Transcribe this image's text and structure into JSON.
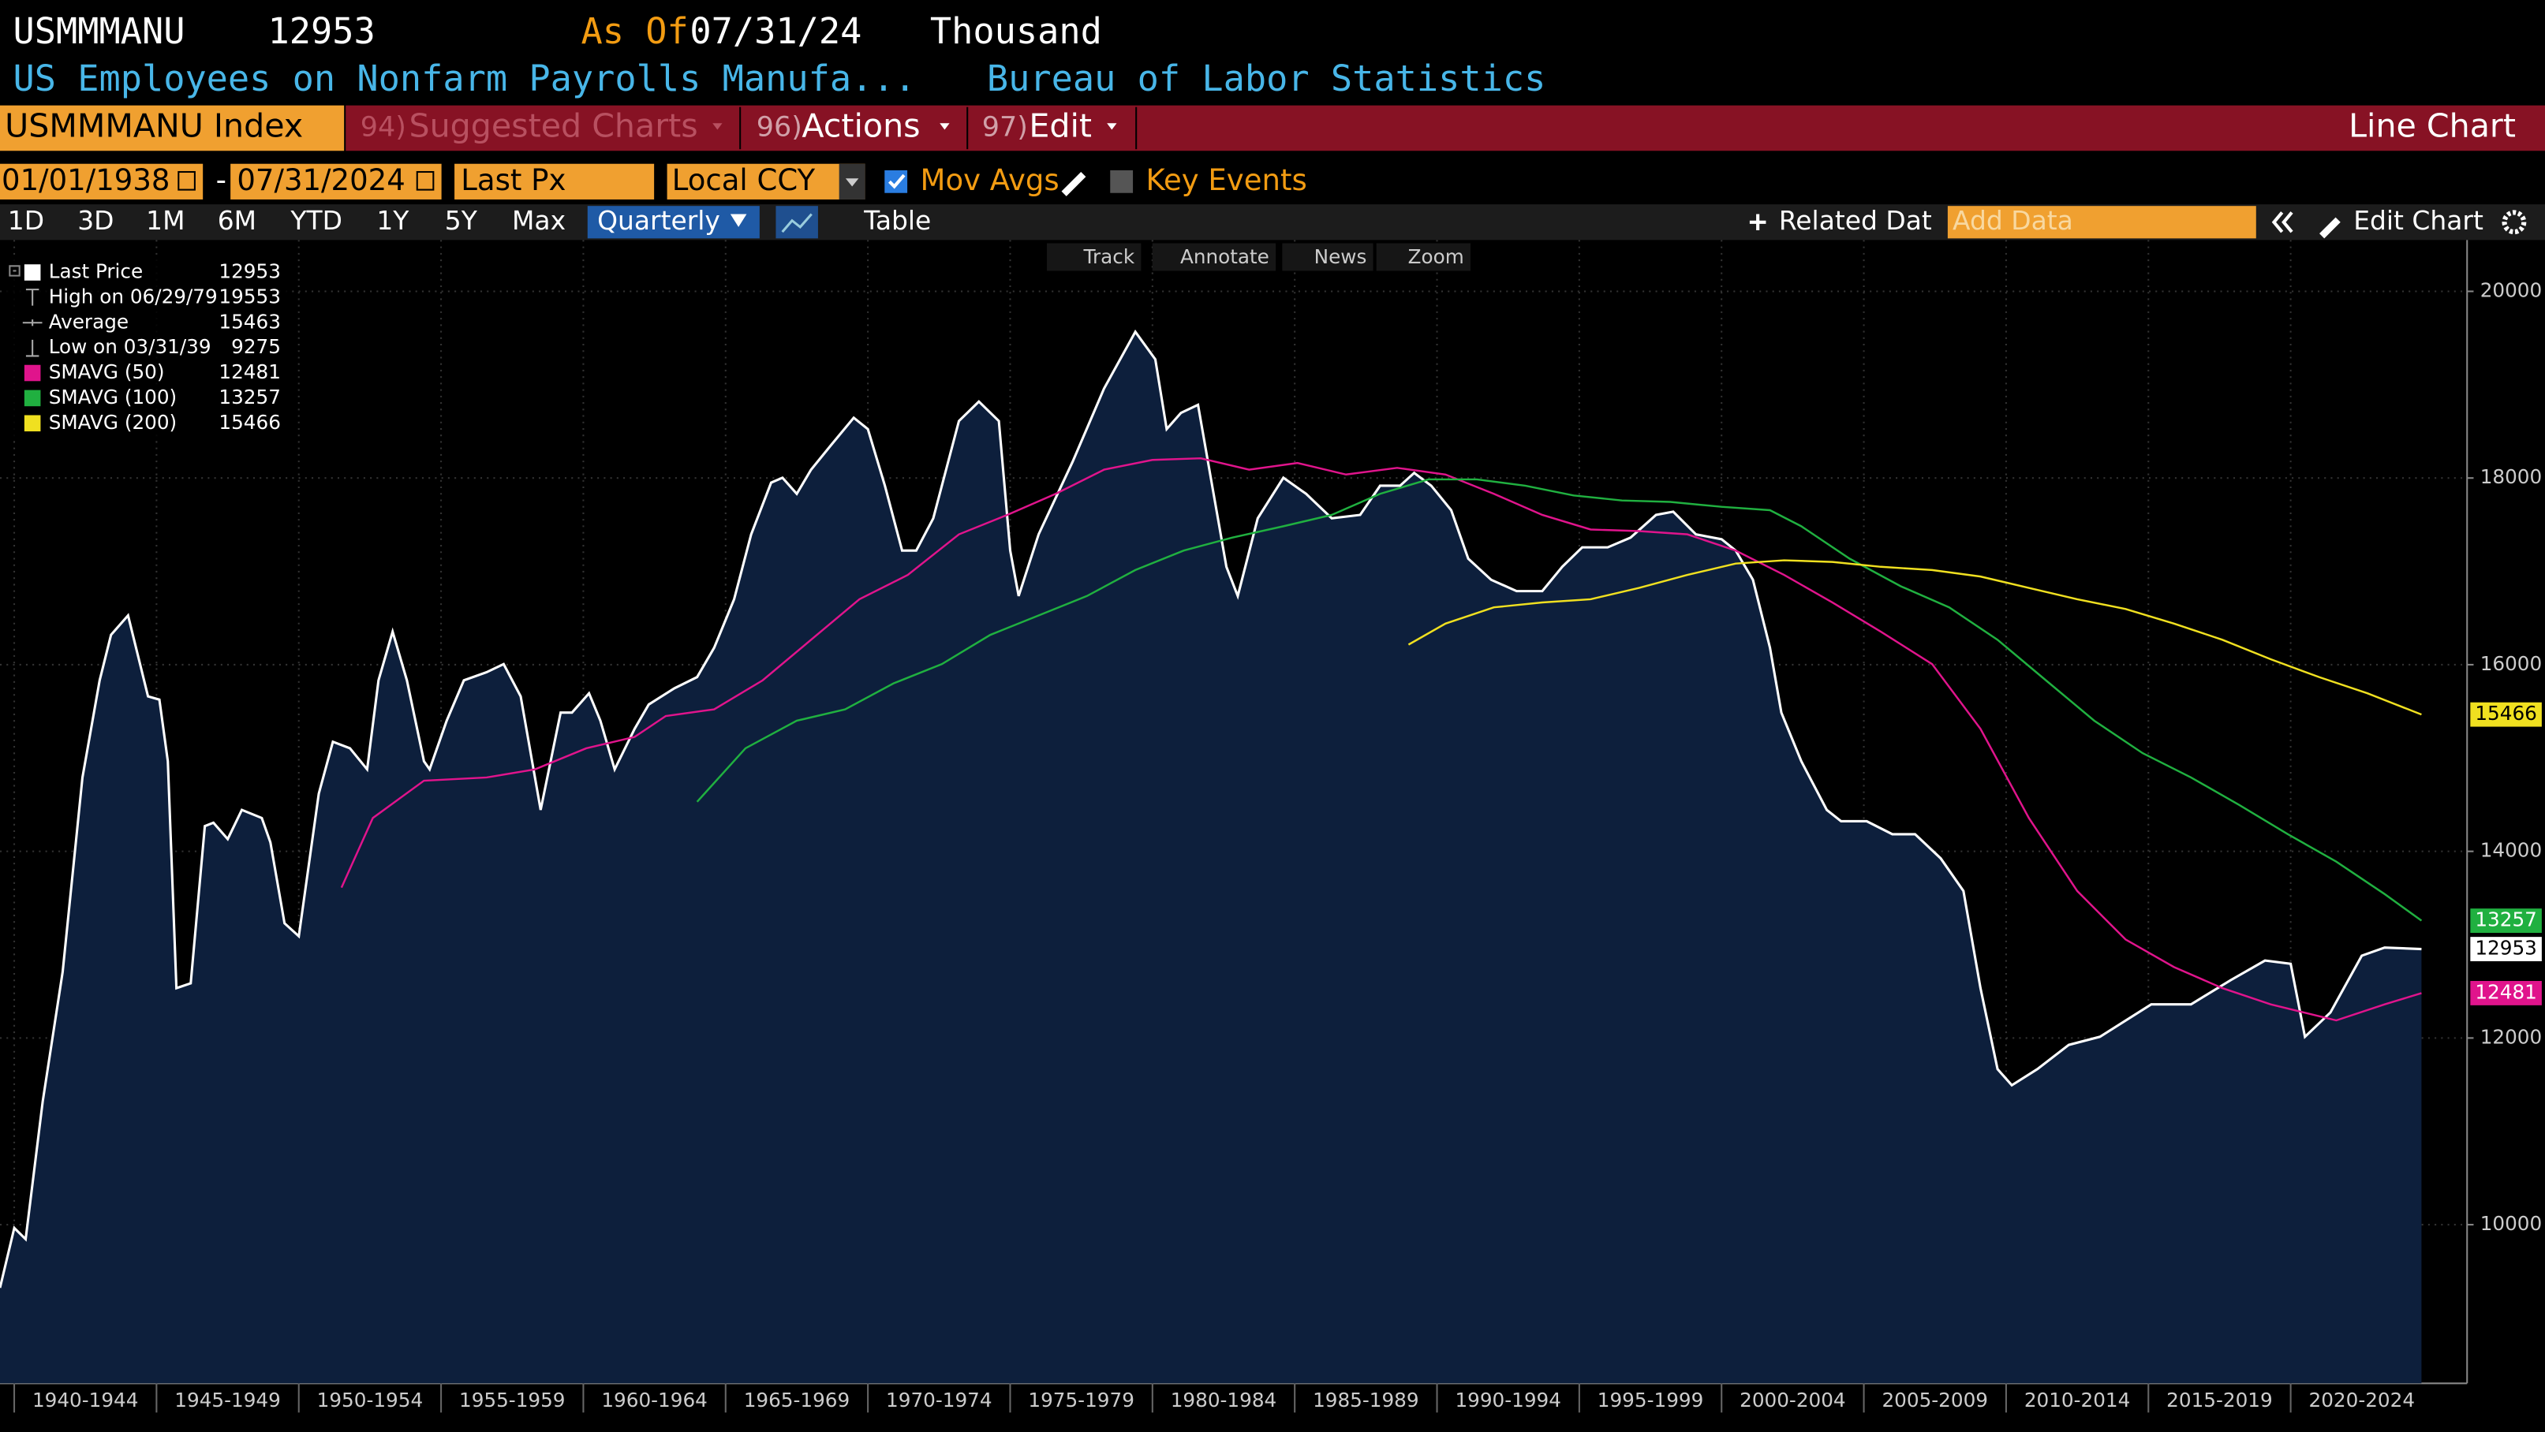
{
  "header": {
    "ticker": "USMMMANU",
    "as_of_label": "As Of",
    "as_of": "07/31/24",
    "units": "Thousand",
    "description": "US Employees on Nonfarm Payrolls Manufa...",
    "source": "Bureau of Labor Statistics"
  },
  "toolbar": {
    "security": "USMMMANU Index",
    "menus": [
      {
        "key": "94)",
        "label": "Suggested Charts"
      },
      {
        "key": "96)",
        "label": "Actions"
      },
      {
        "key": "97)",
        "label": "Edit"
      }
    ],
    "chart_kind": "Line Chart"
  },
  "controls": {
    "start": "01/01/1938",
    "separator": "-",
    "end": "07/31/2024",
    "field": "Last Px",
    "currency": "Local CCY",
    "mov_avgs": "Mov Avgs",
    "key_events": "Key Events"
  },
  "tabs": [
    "1D",
    "3D",
    "1M",
    "6M",
    "YTD",
    "1Y",
    "5Y",
    "Max",
    "Quarterly"
  ],
  "table_tab": "Table",
  "related": "Related Dat",
  "add_data": "Add Data",
  "edit_chart": "Edit Chart",
  "tools": [
    "Track",
    "Annotate",
    "News",
    "Zoom"
  ],
  "chart_data": {
    "type": "line",
    "xlim": [
      1939.5,
      2026.2
    ],
    "ylim": [
      8300,
      20550
    ],
    "xticks": [
      {
        "value": 1940,
        "label": "1940-1944"
      },
      {
        "value": 1945,
        "label": "1945-1949"
      },
      {
        "value": 1950,
        "label": "1950-1954"
      },
      {
        "value": 1955,
        "label": "1955-1959"
      },
      {
        "value": 1960,
        "label": "1960-1964"
      },
      {
        "value": 1965,
        "label": "1965-1969"
      },
      {
        "value": 1970,
        "label": "1970-1974"
      },
      {
        "value": 1975,
        "label": "1975-1979"
      },
      {
        "value": 1980,
        "label": "1980-1984"
      },
      {
        "value": 1985,
        "label": "1985-1989"
      },
      {
        "value": 1990,
        "label": "1990-1994"
      },
      {
        "value": 1995,
        "label": "1995-1999"
      },
      {
        "value": 2000,
        "label": "2000-2004"
      },
      {
        "value": 2005,
        "label": "2005-2009"
      },
      {
        "value": 2010,
        "label": "2010-2014"
      },
      {
        "value": 2015,
        "label": "2015-2019"
      },
      {
        "value": 2020,
        "label": "2020-2024"
      }
    ],
    "yticks": [
      10000,
      12000,
      14000,
      16000,
      18000,
      20000
    ],
    "grid": true,
    "legend_stats": [
      {
        "label": "High on 06/29/79",
        "value": 19553
      },
      {
        "label": "Average",
        "value": 15463
      },
      {
        "label": "Low on 03/31/39",
        "value": 9275
      }
    ],
    "series": [
      {
        "name": "Last Price",
        "color": "#ffffff",
        "fill": "#0d1f3c",
        "last": 12953,
        "x": [
          1939.5,
          1940,
          1940.4,
          1941,
          1941.7,
          1942.4,
          1943,
          1943.4,
          1944,
          1944.7,
          1945.1,
          1945.4,
          1945.7,
          1946.2,
          1946.7,
          1947,
          1947.5,
          1948,
          1948.7,
          1949,
          1949.5,
          1950,
          1950.7,
          1951.2,
          1951.8,
          1952.4,
          1952.8,
          1953.3,
          1953.8,
          1954.4,
          1954.6,
          1955.2,
          1955.8,
          1956.6,
          1957.2,
          1957.8,
          1958.5,
          1959.2,
          1959.6,
          1960.2,
          1960.6,
          1961.1,
          1961.8,
          1962.3,
          1963.2,
          1964,
          1964.6,
          1965.3,
          1965.9,
          1966.6,
          1967,
          1967.5,
          1968,
          1968.7,
          1969.5,
          1970,
          1970.6,
          1971.2,
          1971.7,
          1972.3,
          1973.2,
          1973.9,
          1974.6,
          1975,
          1975.3,
          1976,
          1977.2,
          1978.3,
          1979.4,
          1980.1,
          1980.5,
          1981,
          1981.6,
          1982,
          1982.6,
          1983,
          1983.7,
          1984.6,
          1985.4,
          1986.3,
          1987.3,
          1988,
          1988.7,
          1989.2,
          1989.8,
          1990.5,
          1991.1,
          1991.9,
          1992.8,
          1993.7,
          1994.4,
          1995.1,
          1996,
          1996.8,
          1997.7,
          1998.3,
          1999.1,
          2000,
          2000.5,
          2001.1,
          2001.7,
          2002.1,
          2002.8,
          2003.7,
          2004.2,
          2005.1,
          2006,
          2006.8,
          2007.7,
          2008.5,
          2009.1,
          2009.7,
          2010.2,
          2011.1,
          2012.2,
          2013.3,
          2015.1,
          2016.5,
          2017.9,
          2019.1,
          2020,
          2020.5,
          2021.4,
          2022.5,
          2023.3,
          2024.6
        ],
        "values": [
          9323,
          9965,
          9844,
          11319,
          12708,
          14792,
          15833,
          16319,
          16528,
          15660,
          15625,
          14965,
          12535,
          12587,
          14271,
          14306,
          14132,
          14444,
          14358,
          14097,
          13229,
          13090,
          14618,
          15174,
          15104,
          14878,
          15833,
          16354,
          15833,
          14965,
          14878,
          15399,
          15833,
          15920,
          16007,
          15660,
          14444,
          15486,
          15486,
          15694,
          15399,
          14878,
          15313,
          15573,
          15747,
          15868,
          16181,
          16701,
          17396,
          17951,
          18003,
          17830,
          18090,
          18351,
          18646,
          18524,
          17917,
          17222,
          17222,
          17569,
          18611,
          18819,
          18611,
          17222,
          16736,
          17396,
          18177,
          18958,
          19566,
          19271,
          18524,
          18698,
          18785,
          18090,
          17049,
          16736,
          17569,
          18003,
          17830,
          17569,
          17604,
          17917,
          17917,
          18055,
          17917,
          17656,
          17135,
          16910,
          16788,
          16788,
          17049,
          17257,
          17257,
          17361,
          17604,
          17639,
          17396,
          17344,
          17222,
          16910,
          16181,
          15486,
          14965,
          14444,
          14323,
          14323,
          14184,
          14184,
          13924,
          13576,
          12535,
          11667,
          11493,
          11667,
          11927,
          12014,
          12361,
          12361,
          12622,
          12830,
          12795,
          12014,
          12274,
          12882,
          12969,
          12953
        ]
      },
      {
        "name": "SMAVG (50)",
        "color": "#e0148c",
        "last": 12481,
        "x": [
          1951.5,
          1952.6,
          1954.4,
          1956.6,
          1958.3,
          1960.1,
          1961.8,
          1962.9,
          1964.6,
          1966.3,
          1968,
          1969.7,
          1971.4,
          1973.2,
          1974.9,
          1976.6,
          1978.3,
          1980,
          1981.7,
          1983.4,
          1985.1,
          1986.8,
          1988.6,
          1990.3,
          1992,
          1993.7,
          1995.4,
          1997.1,
          1998.8,
          2000.5,
          2002.2,
          2003.9,
          2005.6,
          2007.4,
          2009.1,
          2010.8,
          2012.5,
          2014.2,
          2015.9,
          2017.6,
          2019.3,
          2021.6,
          2023.3,
          2024.6
        ],
        "values": [
          13611,
          14358,
          14757,
          14792,
          14878,
          15104,
          15226,
          15451,
          15521,
          15833,
          16267,
          16701,
          16962,
          17396,
          17604,
          17830,
          18090,
          18194,
          18212,
          18090,
          18160,
          18038,
          18108,
          18038,
          17830,
          17604,
          17448,
          17431,
          17396,
          17222,
          16962,
          16667,
          16354,
          16007,
          15313,
          14358,
          13576,
          13056,
          12760,
          12535,
          12361,
          12188,
          12361,
          12481
        ]
      },
      {
        "name": "SMAVG (100)",
        "color": "#20b040",
        "last": 13257,
        "x": [
          1964,
          1965.7,
          1967.5,
          1969.2,
          1970.9,
          1972.6,
          1974.3,
          1976,
          1977.7,
          1979.4,
          1981.1,
          1982.8,
          1984.6,
          1986.3,
          1988,
          1989.7,
          1991.4,
          1993.1,
          1994.8,
          1996.5,
          1998.2,
          2000,
          2001.7,
          2002.8,
          2004.5,
          2006.3,
          2008,
          2009.7,
          2011.4,
          2013.1,
          2014.8,
          2016.5,
          2018.2,
          2019.9,
          2021.6,
          2023.3,
          2024.6
        ],
        "values": [
          14531,
          15104,
          15399,
          15521,
          15799,
          16007,
          16319,
          16528,
          16736,
          17014,
          17222,
          17361,
          17483,
          17604,
          17830,
          17986,
          17986,
          17917,
          17813,
          17760,
          17743,
          17691,
          17656,
          17483,
          17135,
          16840,
          16615,
          16267,
          15833,
          15399,
          15052,
          14792,
          14497,
          14184,
          13889,
          13542,
          13257
        ]
      },
      {
        "name": "SMAVG (200)",
        "color": "#f0e020",
        "last": 15466,
        "x": [
          1989,
          1990.3,
          1992,
          1993.7,
          1995.4,
          1997.1,
          1998.8,
          2000.5,
          2002.2,
          2003.9,
          2005.6,
          2007.4,
          2009.1,
          2010.8,
          2012.5,
          2014.2,
          2015.9,
          2017.6,
          2019.3,
          2021,
          2022.7,
          2024.6
        ],
        "values": [
          16215,
          16441,
          16615,
          16667,
          16701,
          16823,
          16962,
          17083,
          17118,
          17101,
          17049,
          17014,
          16944,
          16823,
          16701,
          16597,
          16441,
          16267,
          16059,
          15868,
          15694,
          15466
        ]
      }
    ]
  }
}
